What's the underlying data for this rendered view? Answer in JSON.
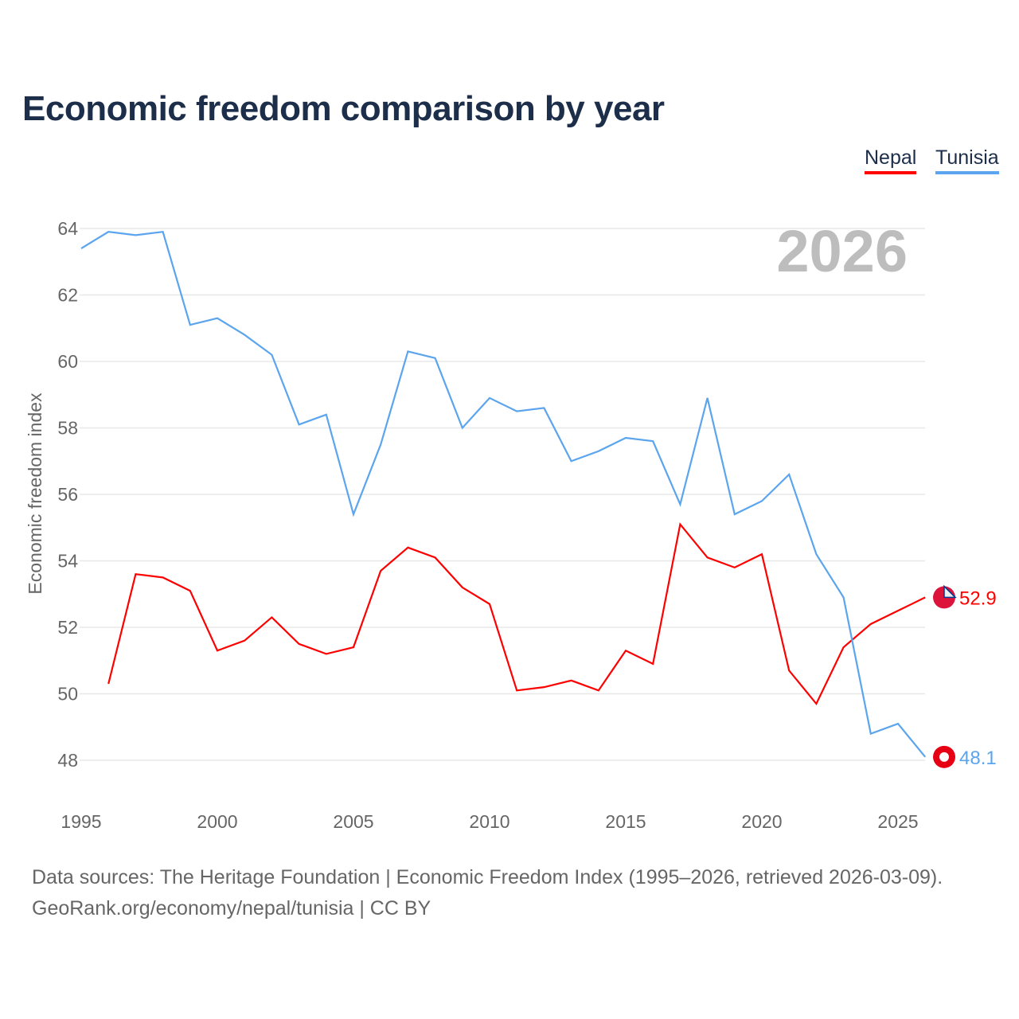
{
  "title": "Economic freedom comparison by year",
  "legend": [
    {
      "label": "Nepal",
      "color": "#ff0000"
    },
    {
      "label": "Tunisia",
      "color": "#5ba4ee"
    }
  ],
  "footer": {
    "line1": "Data sources: The Heritage Foundation | Economic Freedom Index (1995–2026, retrieved 2026-03-09).",
    "line2": "GeoRank.org/economy/nepal/tunisia | CC BY"
  },
  "chart_data": {
    "type": "line",
    "title": "Economic freedom comparison by year",
    "xlabel": "",
    "ylabel": "Economic freedom index",
    "watermark_year": "2026",
    "xlim": [
      1995,
      2026
    ],
    "ylim": [
      47,
      65
    ],
    "xticks": [
      1995,
      2000,
      2005,
      2010,
      2015,
      2020,
      2025
    ],
    "yticks": [
      48,
      50,
      52,
      54,
      56,
      58,
      60,
      62,
      64
    ],
    "series": [
      {
        "name": "Nepal",
        "color": "#ff0000",
        "end_label": "52.9",
        "x": [
          1996,
          1997,
          1998,
          1999,
          2000,
          2001,
          2002,
          2003,
          2004,
          2005,
          2006,
          2007,
          2008,
          2009,
          2010,
          2011,
          2012,
          2013,
          2014,
          2015,
          2016,
          2017,
          2018,
          2019,
          2020,
          2021,
          2022,
          2023,
          2024,
          2025,
          2026
        ],
        "values": [
          50.3,
          53.6,
          53.5,
          53.1,
          51.3,
          51.6,
          52.3,
          51.5,
          51.2,
          51.4,
          53.7,
          54.4,
          54.1,
          53.2,
          52.7,
          50.1,
          50.2,
          50.4,
          50.1,
          51.3,
          50.9,
          55.1,
          54.1,
          53.8,
          54.2,
          50.7,
          49.7,
          51.4,
          52.1,
          52.5,
          52.9
        ]
      },
      {
        "name": "Tunisia",
        "color": "#5ba4ee",
        "end_label": "48.1",
        "x": [
          1995,
          1996,
          1997,
          1998,
          1999,
          2000,
          2001,
          2002,
          2003,
          2004,
          2005,
          2006,
          2007,
          2008,
          2009,
          2010,
          2011,
          2012,
          2013,
          2014,
          2015,
          2016,
          2017,
          2018,
          2019,
          2020,
          2021,
          2022,
          2023,
          2024,
          2025,
          2026
        ],
        "values": [
          63.4,
          63.9,
          63.8,
          63.9,
          61.1,
          61.3,
          60.8,
          60.2,
          58.1,
          58.4,
          55.4,
          57.5,
          60.3,
          60.1,
          58.0,
          58.9,
          58.5,
          58.6,
          57.0,
          57.3,
          57.7,
          57.6,
          55.7,
          58.9,
          55.4,
          55.8,
          56.6,
          54.2,
          52.9,
          48.8,
          49.1,
          48.1
        ]
      }
    ],
    "grid": true,
    "legend_position": "top-right"
  }
}
